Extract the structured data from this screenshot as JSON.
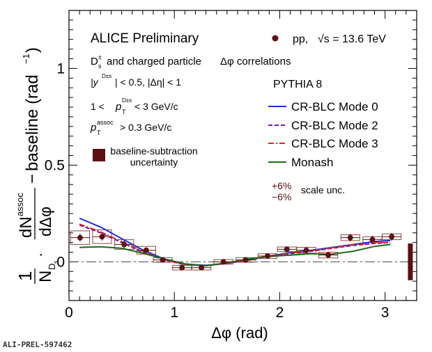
{
  "chart_data": {
    "type": "line",
    "xlabel": "Δφ (rad)",
    "ylabel": "baseline (rad⁻¹)",
    "xlim": [
      0,
      3.3
    ],
    "ylim": [
      -0.2,
      1.3
    ],
    "x_ticks": [
      "0",
      "1",
      "2",
      "3"
    ],
    "y_ticks": [
      "0",
      "0.5",
      "1"
    ],
    "ylabel_parts": {
      "lead": "1",
      "N": "N",
      "N_sub": "D",
      "N_subsub": "s",
      "dN": "dN",
      "dN_sup": "assoc",
      "dphi": "dΔφ",
      "minus": "−",
      "baseline": "baseline (rad",
      "baseline_sup": "−1",
      "baseline_close": ")"
    },
    "header": {
      "title": "ALICE Preliminary",
      "system_label": "pp,",
      "energy_label": "√s = 13.6 TeV",
      "line2_pre": "D",
      "line2_sub": "s",
      "line2_sup": "±",
      "line2_rest": "and charged particle",
      "line2_dphi": "Δφ correlations",
      "cut1": "|y",
      "cut1_sup": "D±s",
      "cut1_rest": "| < 0.5, |Δη| < 1",
      "cut2_pre": "1 <",
      "cut2_pt": "p",
      "cut2_sub": "T",
      "cut2_sup": "D±s",
      "cut2_rest": "< 3 GeV/c",
      "cut3_pt": "p",
      "cut3_sub": "T",
      "cut3_sup": "assoc",
      "cut3_rest": "> 0.3 GeV/c",
      "baseline_unc": [
        "baseline-subtraction",
        "uncertainty"
      ],
      "generator": "PYTHIA 8",
      "scale_plus": "+6%",
      "scale_minus": "−6%",
      "scale_label": "scale unc."
    },
    "data_series": {
      "name": "pp",
      "color": "#5c1010",
      "x": [
        0.105,
        0.314,
        0.524,
        0.733,
        0.89,
        1.073,
        1.257,
        1.466,
        1.676,
        1.885,
        2.068,
        2.252,
        2.461,
        2.67,
        2.88,
        3.063
      ],
      "y": [
        0.125,
        0.13,
        0.09,
        0.06,
        0.01,
        -0.03,
        -0.03,
        0.0,
        0.01,
        0.03,
        0.065,
        0.06,
        0.035,
        0.125,
        0.115,
        0.13
      ],
      "yerr": [
        0.02,
        0.02,
        0.02,
        0.015,
        0.012,
        0.012,
        0.012,
        0.012,
        0.012,
        0.015,
        0.015,
        0.015,
        0.015,
        0.02,
        0.02,
        0.02
      ],
      "syst_half": [
        0.035,
        0.035,
        0.025,
        0.02,
        0.012,
        0.012,
        0.012,
        0.012,
        0.012,
        0.012,
        0.012,
        0.015,
        0.015,
        0.015,
        0.015,
        0.015
      ]
    },
    "baseline_band": {
      "x": 3.24,
      "low": -0.095,
      "high": 0.095,
      "color": "#5c1010"
    },
    "models": [
      {
        "name": "CR-BLC Mode 0",
        "color": "#1f2fd6",
        "dash": "",
        "x": [
          0.1,
          0.3,
          0.5,
          0.7,
          0.9,
          1.1,
          1.3,
          1.5,
          1.7,
          1.9,
          2.1,
          2.3,
          2.5,
          2.7,
          2.9,
          3.05
        ],
        "y": [
          0.225,
          0.18,
          0.12,
          0.062,
          0.015,
          -0.012,
          -0.018,
          -0.008,
          0.01,
          0.03,
          0.048,
          0.06,
          0.075,
          0.09,
          0.105,
          0.11
        ]
      },
      {
        "name": "CR-BLC Mode 2",
        "color": "#6a1fb8",
        "dash": "6,3",
        "x": [
          0.1,
          0.3,
          0.5,
          0.7,
          0.9,
          1.1,
          1.3,
          1.5,
          1.7,
          1.9,
          2.1,
          2.3,
          2.5,
          2.7,
          2.9,
          3.05
        ],
        "y": [
          0.19,
          0.15,
          0.1,
          0.05,
          0.01,
          -0.015,
          -0.02,
          -0.008,
          0.008,
          0.028,
          0.042,
          0.055,
          0.07,
          0.085,
          0.095,
          0.1
        ]
      },
      {
        "name": "CR-BLC Mode 3",
        "color": "#e0261a",
        "dash": "8,3,2,3",
        "x": [
          0.1,
          0.3,
          0.5,
          0.7,
          0.9,
          1.1,
          1.3,
          1.5,
          1.7,
          1.9,
          2.1,
          2.3,
          2.5,
          2.7,
          2.9,
          3.05
        ],
        "y": [
          0.195,
          0.155,
          0.105,
          0.055,
          0.012,
          -0.014,
          -0.02,
          -0.008,
          0.01,
          0.03,
          0.045,
          0.058,
          0.072,
          0.088,
          0.098,
          0.1
        ]
      },
      {
        "name": "Monash",
        "color": "#1a6b1a",
        "dash": "",
        "x": [
          0.1,
          0.3,
          0.5,
          0.7,
          0.9,
          1.1,
          1.3,
          1.5,
          1.7,
          1.9,
          2.1,
          2.3,
          2.5,
          2.7,
          2.9,
          3.05
        ],
        "y": [
          0.075,
          0.078,
          0.07,
          0.045,
          0.015,
          -0.01,
          -0.02,
          -0.005,
          0.015,
          0.028,
          0.035,
          0.042,
          0.04,
          0.055,
          0.08,
          0.09
        ]
      }
    ],
    "reference_line": {
      "y": 0,
      "style": "dash-dot"
    }
  },
  "figure_id": "ALI-PREL-597462"
}
